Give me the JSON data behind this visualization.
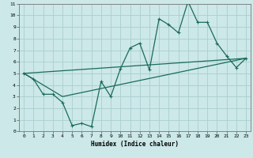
{
  "title": "",
  "xlabel": "Humidex (Indice chaleur)",
  "bg_color": "#cce8e8",
  "line_color": "#1a6b5a",
  "grid_color": "#aacece",
  "xlim": [
    -0.5,
    23.5
  ],
  "ylim": [
    0,
    11
  ],
  "xticks": [
    0,
    1,
    2,
    3,
    4,
    5,
    6,
    7,
    8,
    9,
    10,
    11,
    12,
    13,
    14,
    15,
    16,
    17,
    18,
    19,
    20,
    21,
    22,
    23
  ],
  "yticks": [
    0,
    1,
    2,
    3,
    4,
    5,
    6,
    7,
    8,
    9,
    10,
    11
  ],
  "line1": {
    "x": [
      0,
      1,
      2,
      3,
      4,
      5,
      6,
      7,
      8,
      9,
      10,
      11,
      12,
      13,
      14,
      15,
      16,
      17,
      18,
      19,
      20,
      21,
      22,
      23
    ],
    "y": [
      5,
      4.5,
      3.2,
      3.2,
      2.5,
      0.5,
      0.7,
      0.4,
      4.3,
      3.0,
      5.4,
      7.2,
      7.6,
      5.3,
      9.7,
      9.2,
      8.5,
      11.2,
      9.4,
      9.4,
      7.6,
      6.5,
      5.5,
      6.3
    ]
  },
  "line2": {
    "x": [
      0,
      23
    ],
    "y": [
      5,
      6.3
    ]
  },
  "line3": {
    "x": [
      0,
      4,
      23
    ],
    "y": [
      5,
      3.0,
      6.3
    ]
  }
}
